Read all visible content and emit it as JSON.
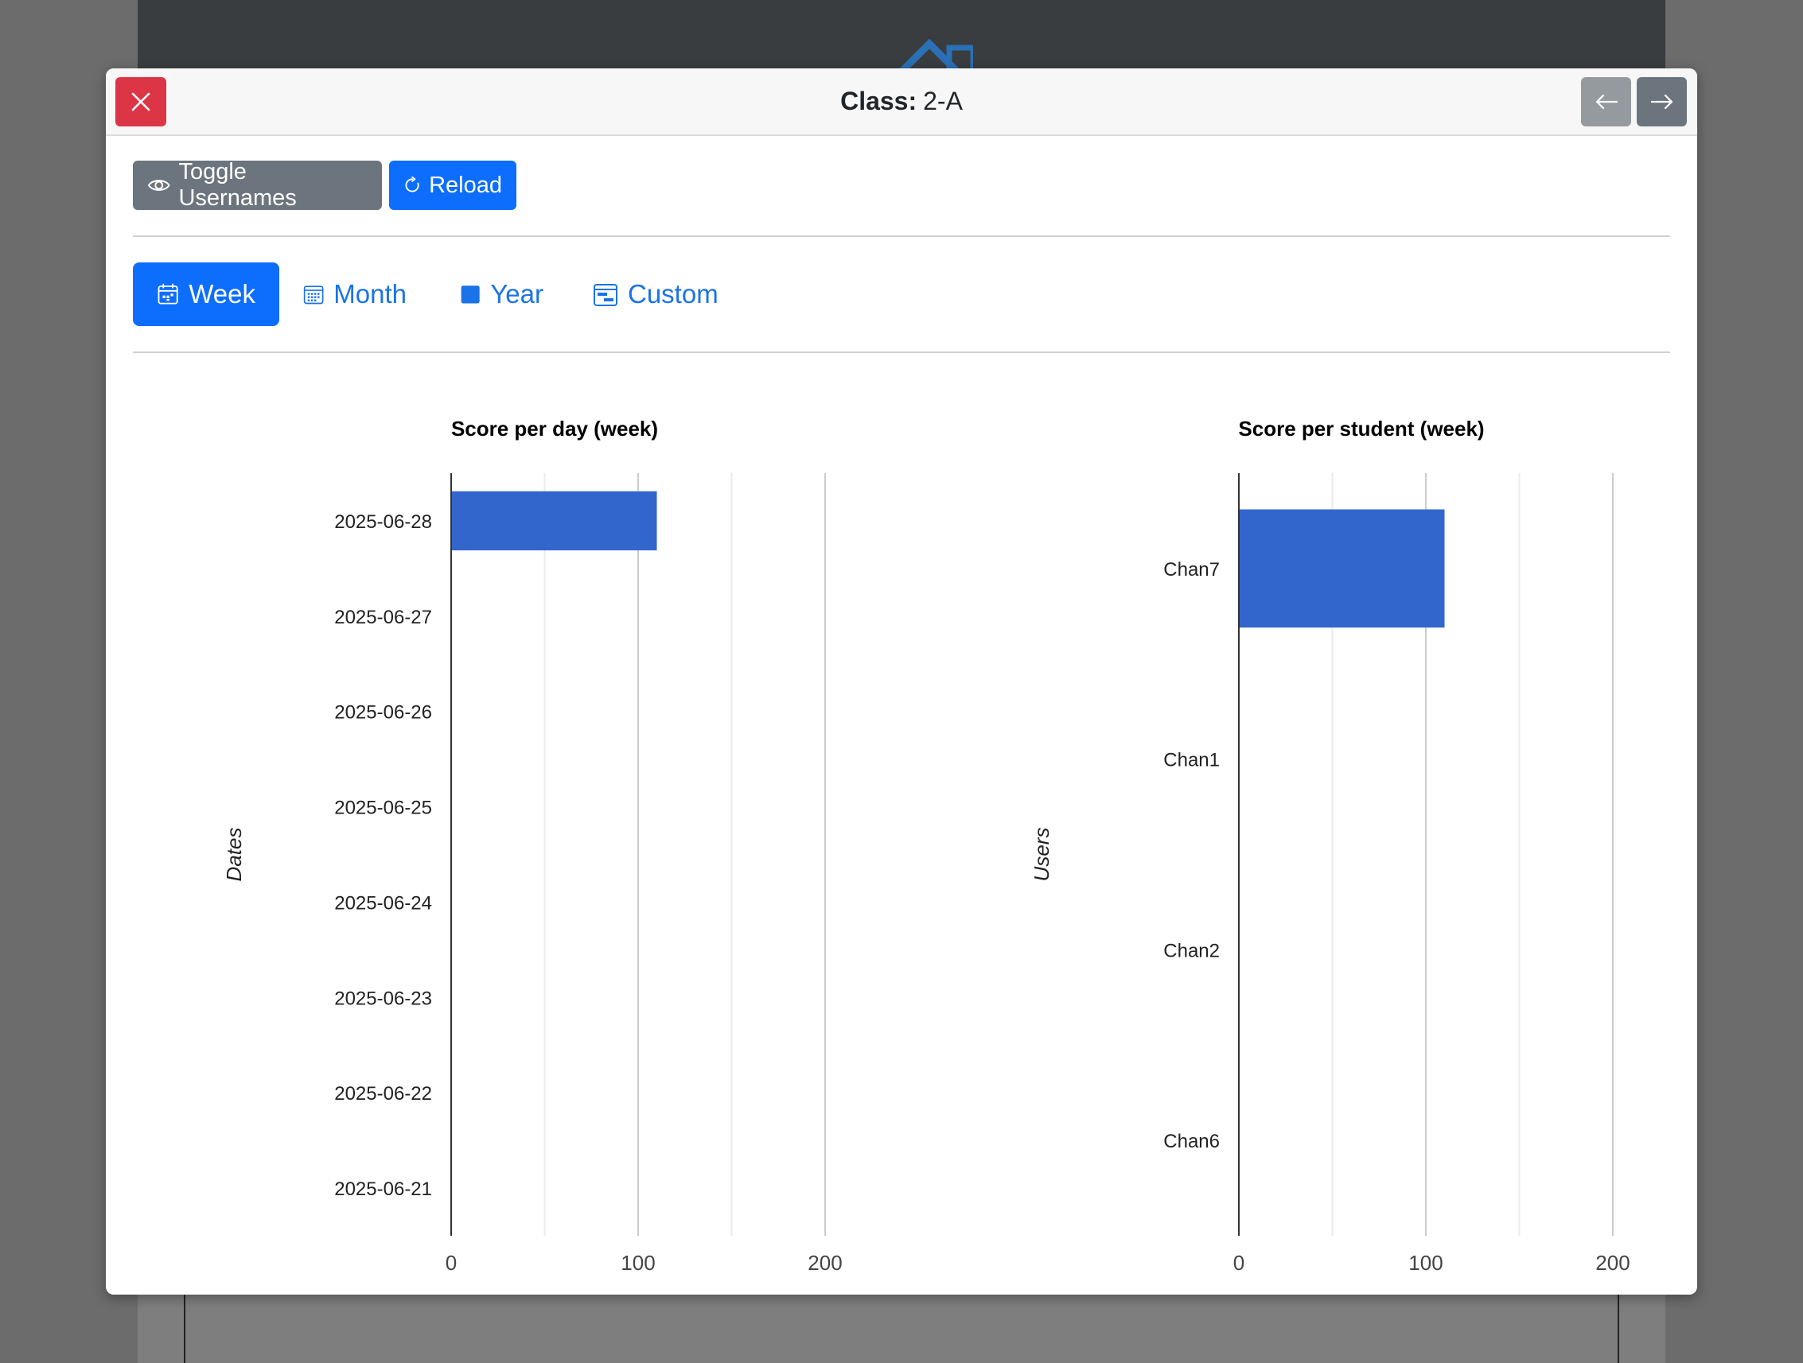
{
  "modal": {
    "title_label": "Class:",
    "title_value": "2-A"
  },
  "toolbar": {
    "toggle_label": "Toggle Usernames",
    "reload_label": "Reload"
  },
  "tabs": [
    {
      "label": "Week",
      "active": true
    },
    {
      "label": "Month",
      "active": false
    },
    {
      "label": "Year",
      "active": false
    },
    {
      "label": "Custom",
      "active": false
    }
  ],
  "colors": {
    "primary": "#0d6efd",
    "danger": "#dc3545",
    "secondary": "#6c757d",
    "bar": "#3366cc"
  },
  "icons": {
    "close": "close-icon",
    "prev": "arrow-left-icon",
    "next": "arrow-right-icon",
    "toggle": "eye-icon",
    "reload": "reload-icon",
    "week": "calendar-week-icon",
    "month": "calendar-month-icon",
    "year": "calendar-year-icon",
    "custom": "calendar-range-icon"
  },
  "chart_data": [
    {
      "type": "bar",
      "orientation": "horizontal",
      "title": "Score per day (week)",
      "ylabel": "Dates",
      "xlabel": "",
      "categories": [
        "2025-06-28",
        "2025-06-27",
        "2025-06-26",
        "2025-06-25",
        "2025-06-24",
        "2025-06-23",
        "2025-06-22",
        "2025-06-21"
      ],
      "values": [
        110,
        0,
        0,
        0,
        0,
        0,
        0,
        0
      ],
      "xlim": [
        0,
        200
      ],
      "xticks": [
        0,
        100,
        200
      ],
      "grid": true
    },
    {
      "type": "bar",
      "orientation": "horizontal",
      "title": "Score per student (week)",
      "ylabel": "Users",
      "xlabel": "",
      "categories": [
        "Chan7",
        "Chan1",
        "Chan2",
        "Chan6"
      ],
      "values": [
        110,
        0,
        0,
        0
      ],
      "xlim": [
        0,
        200
      ],
      "xticks": [
        0,
        100,
        200
      ],
      "grid": true
    }
  ]
}
